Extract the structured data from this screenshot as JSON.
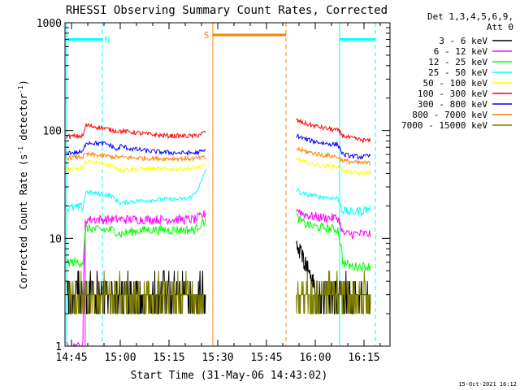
{
  "chart_data": {
    "type": "line",
    "title": "RHESSI Observing Summary Count Rates, Corrected",
    "xlabel": "Start Time (31-May-06 14:43:02)",
    "ylabel_main": "Corrected Count Rate (s",
    "ylabel_sup1": "-1",
    "ylabel_mid": " detector",
    "ylabel_sup2": "-1",
    "ylabel_end": ")",
    "x_unit": "minutes after 14:43:02",
    "xlim": [
      0,
      100
    ],
    "ylim": [
      1,
      1000
    ],
    "yscale": "log",
    "x_ticks": [
      {
        "label": "14:45",
        "value": 2
      },
      {
        "label": "15:00",
        "value": 17
      },
      {
        "label": "15:15",
        "value": 32
      },
      {
        "label": "15:30",
        "value": 47
      },
      {
        "label": "15:45",
        "value": 62
      },
      {
        "label": "16:00",
        "value": 77
      },
      {
        "label": "16:15",
        "value": 92
      }
    ],
    "y_ticks": [
      {
        "label": "1",
        "value": 1
      },
      {
        "label": "10",
        "value": 10
      },
      {
        "label": "100",
        "value": 100
      },
      {
        "label": "1000",
        "value": 1000
      }
    ],
    "legend_title": "Det 1,3,4,5,6,9,",
    "legend_att": "Att 0",
    "legend_position": "right",
    "timestamp": "15-Oct-2021 16:12",
    "gaps": [
      [
        43.5,
        71.0
      ]
    ],
    "series": [
      {
        "name": "3 - 6 keV",
        "color": "#000000",
        "values": [
          [
            0.5,
            3.0
          ],
          [
            5,
            3.0
          ],
          [
            10,
            3.0
          ],
          [
            15,
            3.0
          ],
          [
            20,
            3.0
          ],
          [
            25,
            3.0
          ],
          [
            30,
            3.0
          ],
          [
            35,
            3.0
          ],
          [
            40,
            3.0
          ],
          [
            43.4,
            3.0
          ],
          [
            71.2,
            9.0
          ],
          [
            72,
            8.0
          ],
          [
            73,
            7.0
          ],
          [
            74,
            6.0
          ],
          [
            75,
            5.0
          ],
          [
            76,
            4.2
          ],
          [
            77,
            3.5
          ],
          [
            78,
            3.2
          ],
          [
            80,
            3.0
          ],
          [
            85,
            3.0
          ],
          [
            90,
            3.0
          ],
          [
            94,
            3.0
          ]
        ]
      },
      {
        "name": "6 - 12 keV",
        "color": "#ff00ff",
        "values": [
          [
            0.5,
            1.0
          ],
          [
            5.5,
            1.0
          ],
          [
            6.5,
            15.0
          ],
          [
            10,
            15.0
          ],
          [
            15,
            15.0
          ],
          [
            20,
            15.0
          ],
          [
            25,
            15.0
          ],
          [
            30,
            15.0
          ],
          [
            35,
            15.0
          ],
          [
            40,
            15.0
          ],
          [
            43.4,
            17.0
          ],
          [
            71.2,
            19.0
          ],
          [
            73,
            17.0
          ],
          [
            76,
            16.0
          ],
          [
            80,
            15.5
          ],
          [
            84,
            15.5
          ],
          [
            85.5,
            11.0
          ],
          [
            88,
            11.0
          ],
          [
            91,
            11.0
          ],
          [
            94,
            11.0
          ]
        ]
      },
      {
        "name": "12 - 25 keV",
        "color": "#00ff00",
        "values": [
          [
            0.5,
            6.0
          ],
          [
            5.5,
            6.0
          ],
          [
            6.5,
            12.5
          ],
          [
            10,
            12.0
          ],
          [
            15,
            12.0
          ],
          [
            17,
            11.0
          ],
          [
            20,
            11.5
          ],
          [
            25,
            12.0
          ],
          [
            30,
            12.0
          ],
          [
            35,
            12.0
          ],
          [
            40,
            12.0
          ],
          [
            43.4,
            15.0
          ],
          [
            71.2,
            16.0
          ],
          [
            73,
            14.0
          ],
          [
            76,
            13.0
          ],
          [
            80,
            12.5
          ],
          [
            84,
            12.0
          ],
          [
            85.5,
            6.0
          ],
          [
            88,
            5.5
          ],
          [
            91,
            5.5
          ],
          [
            94,
            5.5
          ]
        ]
      },
      {
        "name": "25 - 50 keV",
        "color": "#00ffff",
        "values": [
          [
            0.5,
            19.0
          ],
          [
            5.5,
            19.5
          ],
          [
            6.5,
            27.0
          ],
          [
            10,
            26.0
          ],
          [
            14,
            25.0
          ],
          [
            17,
            21.0
          ],
          [
            20,
            22.0
          ],
          [
            25,
            22.5
          ],
          [
            30,
            23.0
          ],
          [
            35,
            23.0
          ],
          [
            38,
            23.5
          ],
          [
            40,
            26.0
          ],
          [
            42,
            33.0
          ],
          [
            43.4,
            45.0
          ],
          [
            71.2,
            28.0
          ],
          [
            73,
            26.0
          ],
          [
            76,
            25.0
          ],
          [
            80,
            24.0
          ],
          [
            84,
            23.5
          ],
          [
            85.5,
            18.0
          ],
          [
            88,
            17.5
          ],
          [
            91,
            18.0
          ],
          [
            94,
            19.0
          ]
        ]
      },
      {
        "name": "50 - 100 keV",
        "color": "#ffff00",
        "values": [
          [
            0.5,
            44.0
          ],
          [
            5.5,
            45.0
          ],
          [
            6.5,
            52.0
          ],
          [
            10,
            50.0
          ],
          [
            13,
            48.0
          ],
          [
            15,
            47.0
          ],
          [
            17,
            43.0
          ],
          [
            20,
            44.0
          ],
          [
            25,
            44.0
          ],
          [
            30,
            44.0
          ],
          [
            35,
            44.0
          ],
          [
            40,
            45.0
          ],
          [
            43.4,
            47.0
          ],
          [
            71.2,
            55.0
          ],
          [
            73,
            52.0
          ],
          [
            76,
            49.0
          ],
          [
            80,
            47.0
          ],
          [
            84,
            46.0
          ],
          [
            85.5,
            43.0
          ],
          [
            88,
            41.0
          ],
          [
            91,
            40.0
          ],
          [
            94,
            41.0
          ]
        ]
      },
      {
        "name": "100 - 300 keV",
        "color": "#ff0000",
        "values": [
          [
            0.5,
            88.0
          ],
          [
            5.5,
            89.0
          ],
          [
            6.5,
            112.0
          ],
          [
            10,
            108.0
          ],
          [
            15,
            100.0
          ],
          [
            20,
            97.0
          ],
          [
            25,
            93.0
          ],
          [
            30,
            90.0
          ],
          [
            35,
            89.0
          ],
          [
            40,
            89.0
          ],
          [
            43.4,
            97.0
          ],
          [
            71.2,
            125.0
          ],
          [
            73,
            118.0
          ],
          [
            76,
            112.0
          ],
          [
            80,
            105.0
          ],
          [
            84,
            100.0
          ],
          [
            85.5,
            90.0
          ],
          [
            88,
            85.0
          ],
          [
            91,
            82.0
          ],
          [
            94,
            80.0
          ]
        ]
      },
      {
        "name": "300 - 800 keV",
        "color": "#0000ff",
        "values": [
          [
            0.5,
            62.0
          ],
          [
            5.5,
            63.0
          ],
          [
            6.5,
            78.0
          ],
          [
            10,
            76.0
          ],
          [
            13,
            75.0
          ],
          [
            15,
            70.0
          ],
          [
            16,
            65.0
          ],
          [
            17,
            72.0
          ],
          [
            20,
            68.0
          ],
          [
            25,
            65.0
          ],
          [
            30,
            63.0
          ],
          [
            35,
            62.0
          ],
          [
            40,
            62.0
          ],
          [
            43.4,
            65.0
          ],
          [
            71.2,
            90.0
          ],
          [
            73,
            85.0
          ],
          [
            76,
            80.0
          ],
          [
            80,
            76.0
          ],
          [
            84,
            74.0
          ],
          [
            85.5,
            60.0
          ],
          [
            88,
            58.0
          ],
          [
            91,
            57.0
          ],
          [
            94,
            58.0
          ]
        ]
      },
      {
        "name": "800 - 7000 keV",
        "color": "#ff7f00",
        "values": [
          [
            0.5,
            56.0
          ],
          [
            5.5,
            57.0
          ],
          [
            6.5,
            60.0
          ],
          [
            10,
            59.0
          ],
          [
            15,
            57.0
          ],
          [
            20,
            56.0
          ],
          [
            25,
            55.5
          ],
          [
            30,
            55.0
          ],
          [
            35,
            55.0
          ],
          [
            40,
            55.0
          ],
          [
            43.4,
            56.0
          ],
          [
            71.2,
            68.0
          ],
          [
            73,
            65.0
          ],
          [
            76,
            62.0
          ],
          [
            80,
            59.0
          ],
          [
            84,
            57.0
          ],
          [
            85.5,
            53.0
          ],
          [
            88,
            51.0
          ],
          [
            91,
            50.0
          ],
          [
            94,
            50.0
          ]
        ]
      },
      {
        "name": "7000 - 15000 keV",
        "color": "#808000",
        "values": [
          [
            0.5,
            3.0
          ],
          [
            5,
            3.0
          ],
          [
            10,
            3.0
          ],
          [
            15,
            3.0
          ],
          [
            20,
            3.0
          ],
          [
            25,
            3.0
          ],
          [
            30,
            3.0
          ],
          [
            35,
            3.0
          ],
          [
            40,
            3.0
          ],
          [
            43.4,
            3.0
          ],
          [
            71.2,
            3.0
          ],
          [
            75,
            3.0
          ],
          [
            80,
            3.0
          ],
          [
            85,
            3.0
          ],
          [
            90,
            3.0
          ],
          [
            94,
            3.0
          ]
        ]
      }
    ],
    "annotations": [
      {
        "text": "N",
        "color": "#00ffff",
        "kind": "night",
        "bar": [
          0.5,
          11.5
        ],
        "bar_y": 700,
        "label_x": 13.0,
        "label_y": 700
      },
      {
        "text": "S",
        "color": "#ff7f00",
        "kind": "saa",
        "bar": [
          45.5,
          68.0
        ],
        "bar_y": 770,
        "label_x": 43.5,
        "label_y": 770
      },
      {
        "text": "",
        "color": "#00ffff",
        "kind": "night",
        "bar": [
          84.5,
          95.5
        ],
        "bar_y": 700,
        "label_x": null,
        "label_y": null
      }
    ],
    "marker_lines": [
      {
        "x": 0.5,
        "color": "#00ffff",
        "style": "solid"
      },
      {
        "x": 11.5,
        "color": "#00ffff",
        "style": "dashed"
      },
      {
        "x": 45.5,
        "color": "#ff7f00",
        "style": "solid"
      },
      {
        "x": 68.0,
        "color": "#ff7f00",
        "style": "dashed"
      },
      {
        "x": 84.5,
        "color": "#00ffff",
        "style": "solid"
      },
      {
        "x": 95.5,
        "color": "#00ffff",
        "style": "dashed"
      }
    ]
  }
}
